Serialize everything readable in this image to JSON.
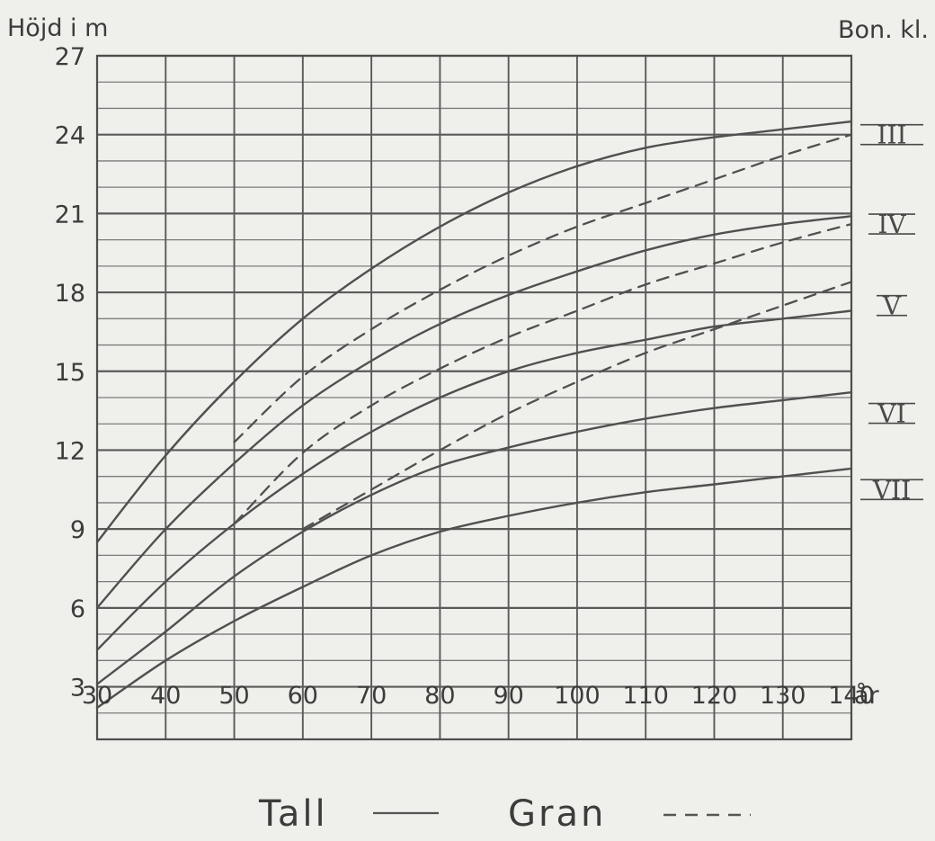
{
  "chart_data": {
    "type": "line",
    "ylabel": "Höjd i m",
    "xunit": "år",
    "right_header": "Bon. kl.",
    "xlim": [
      30,
      140
    ],
    "ylim": [
      1,
      27
    ],
    "x_ticks": [
      30,
      40,
      50,
      60,
      70,
      80,
      90,
      100,
      110,
      120,
      130,
      140
    ],
    "y_ticks": [
      3,
      6,
      9,
      12,
      15,
      18,
      21,
      24,
      27
    ],
    "grid": true,
    "x_tick_labels": [
      "30",
      "40",
      "50",
      "60",
      "70",
      "80",
      "90",
      "100",
      "110",
      "120",
      "130",
      "140"
    ],
    "y_tick_labels": [
      "3",
      "6",
      "9",
      "12",
      "15",
      "18",
      "21",
      "24",
      "27"
    ],
    "series": [
      {
        "group": "Tall",
        "label": "III",
        "dash": false,
        "x": [
          30,
          40,
          50,
          60,
          70,
          80,
          90,
          100,
          110,
          120,
          130,
          140
        ],
        "y": [
          8.5,
          11.8,
          14.6,
          17.0,
          18.9,
          20.5,
          21.8,
          22.8,
          23.5,
          23.9,
          24.2,
          24.5
        ]
      },
      {
        "group": "Tall",
        "label": "IV",
        "dash": false,
        "x": [
          30,
          40,
          50,
          60,
          70,
          80,
          90,
          100,
          110,
          120,
          130,
          140
        ],
        "y": [
          6.0,
          9.0,
          11.5,
          13.7,
          15.4,
          16.8,
          17.9,
          18.8,
          19.6,
          20.2,
          20.6,
          20.9
        ]
      },
      {
        "group": "Tall",
        "label": "V",
        "dash": false,
        "x": [
          30,
          40,
          50,
          60,
          70,
          80,
          90,
          100,
          110,
          120,
          130,
          140
        ],
        "y": [
          4.4,
          7.0,
          9.2,
          11.1,
          12.7,
          14.0,
          15.0,
          15.7,
          16.2,
          16.7,
          17.0,
          17.3
        ]
      },
      {
        "group": "Tall",
        "label": "VI",
        "dash": false,
        "x": [
          30,
          40,
          50,
          60,
          70,
          80,
          90,
          100,
          110,
          120,
          130,
          140
        ],
        "y": [
          3.1,
          5.1,
          7.2,
          8.9,
          10.3,
          11.4,
          12.1,
          12.7,
          13.2,
          13.6,
          13.9,
          14.2
        ]
      },
      {
        "group": "Tall",
        "label": "VII",
        "dash": false,
        "x": [
          30,
          40,
          50,
          60,
          70,
          80,
          90,
          100,
          110,
          120,
          130,
          140
        ],
        "y": [
          2.2,
          4.0,
          5.5,
          6.8,
          8.0,
          8.9,
          9.5,
          10.0,
          10.4,
          10.7,
          11.0,
          11.3
        ]
      },
      {
        "group": "Gran",
        "label": "",
        "dash": true,
        "x": [
          50,
          60,
          70,
          80,
          90,
          100,
          110,
          120,
          130,
          140
        ],
        "y": [
          12.3,
          14.8,
          16.6,
          18.1,
          19.4,
          20.5,
          21.4,
          22.3,
          23.2,
          24.0
        ]
      },
      {
        "group": "Gran",
        "label": "",
        "dash": true,
        "x": [
          50,
          60,
          70,
          80,
          90,
          100,
          110,
          120,
          130,
          140
        ],
        "y": [
          9.2,
          11.9,
          13.7,
          15.1,
          16.3,
          17.3,
          18.3,
          19.1,
          19.9,
          20.6
        ]
      },
      {
        "group": "Gran",
        "label": "",
        "dash": true,
        "x": [
          60,
          70,
          80,
          90,
          100,
          110,
          120,
          130,
          140
        ],
        "y": [
          9.0,
          10.5,
          12.0,
          13.4,
          14.6,
          15.7,
          16.6,
          17.5,
          18.4
        ]
      }
    ],
    "right_labels": [
      {
        "text": "III",
        "y": 24.0
      },
      {
        "text": "IV",
        "y": 20.6
      },
      {
        "text": "V",
        "y": 17.5
      },
      {
        "text": "VI",
        "y": 13.4
      },
      {
        "text": "VII",
        "y": 10.5
      }
    ],
    "legend": {
      "tall_label": "Tall",
      "tall_symbol": "——",
      "gran_label": "Gran",
      "gran_symbol": "----"
    }
  }
}
